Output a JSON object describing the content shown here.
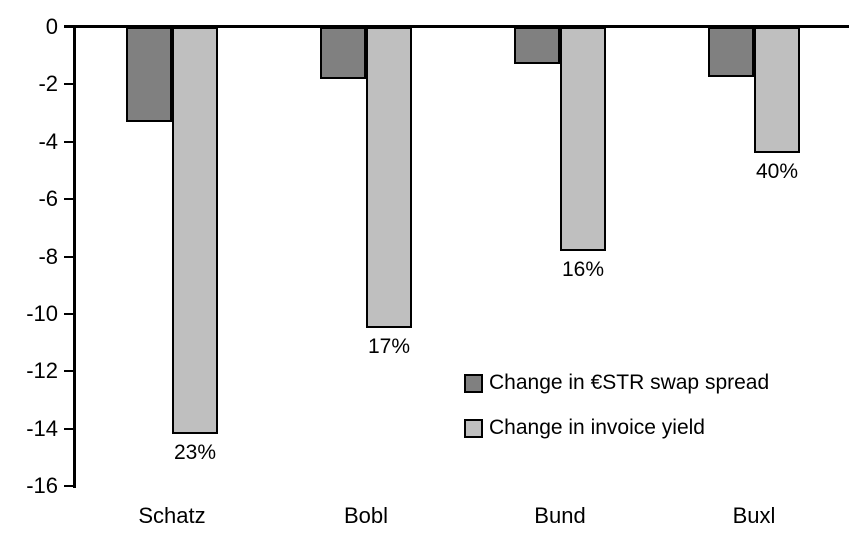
{
  "chart_data": {
    "type": "bar",
    "title": "",
    "categories": [
      "Schatz",
      "Bobl",
      "Bund",
      "Buxl"
    ],
    "series": [
      {
        "name": "Change in €STR swap spread",
        "color": "#808080",
        "values": [
          -3.3,
          -1.8,
          -1.3,
          -1.75
        ]
      },
      {
        "name": "Change in invoice yield",
        "color": "#bfbfbf",
        "values": [
          -14.2,
          -10.5,
          -7.8,
          -4.4
        ],
        "point_labels": [
          "23%",
          "17%",
          "16%",
          "40%"
        ]
      }
    ],
    "xlabel": "",
    "ylabel": "",
    "ylim": [
      -16,
      0
    ],
    "yticks": [
      0,
      -2,
      -4,
      -6,
      -8,
      -10,
      -12,
      -14,
      -16
    ],
    "ytick_labels": [
      "0",
      "-2",
      "-4",
      "-6",
      "-8",
      "-10",
      "-12",
      "-14",
      "-16"
    ],
    "grid": false,
    "legend_position": "inside-right",
    "axis_color": "#000000",
    "bar_border_color": "#000000",
    "background": "#ffffff"
  }
}
